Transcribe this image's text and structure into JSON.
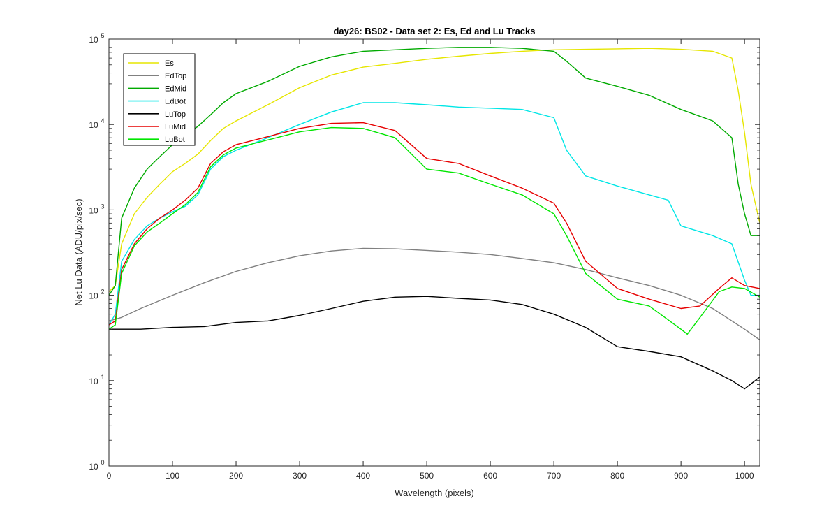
{
  "chart_data": {
    "type": "line",
    "title": "day26: BS02 - Data set 2: Es, Ed and Lu Tracks",
    "xlabel": "Wavelength (pixels)",
    "ylabel": "Net Lu Data (ADU/pix/sec)",
    "xlim": [
      0,
      1024
    ],
    "ylim": [
      1,
      100000
    ],
    "yscale": "log",
    "grid": false,
    "legend_position": "top-left",
    "x_ticks": [
      0,
      100,
      200,
      300,
      400,
      500,
      600,
      700,
      800,
      900,
      1000
    ],
    "x_tick_labels": [
      "0",
      "100",
      "200",
      "300",
      "400",
      "500",
      "600",
      "700",
      "800",
      "900",
      "1000"
    ],
    "y_ticks": [
      1,
      10,
      100,
      1000,
      10000,
      100000
    ],
    "y_tick_labels": [
      "10",
      "10",
      "10",
      "10",
      "10",
      "10"
    ],
    "y_tick_exponents": [
      "0",
      "1",
      "2",
      "3",
      "4",
      "5"
    ],
    "series": [
      {
        "name": "Es",
        "color": "#e6e600",
        "x": [
          0,
          10,
          20,
          40,
          60,
          80,
          100,
          120,
          140,
          160,
          180,
          200,
          250,
          300,
          350,
          400,
          450,
          500,
          550,
          600,
          650,
          700,
          750,
          800,
          850,
          900,
          950,
          980,
          990,
          1000,
          1010,
          1024
        ],
        "y": [
          110,
          130,
          400,
          900,
          1400,
          2000,
          2800,
          3500,
          4500,
          6500,
          9000,
          11000,
          17000,
          27000,
          38000,
          47000,
          52000,
          58000,
          63000,
          68000,
          72000,
          75000,
          76000,
          77000,
          78000,
          76000,
          72000,
          60000,
          25000,
          8000,
          2000,
          700
        ]
      },
      {
        "name": "EdTop",
        "color": "#808080",
        "x": [
          0,
          20,
          50,
          100,
          150,
          200,
          250,
          300,
          350,
          400,
          450,
          500,
          550,
          600,
          650,
          700,
          750,
          800,
          850,
          900,
          950,
          1000,
          1024
        ],
        "y": [
          50,
          55,
          70,
          100,
          140,
          190,
          240,
          290,
          330,
          355,
          350,
          335,
          320,
          300,
          270,
          240,
          200,
          160,
          130,
          100,
          70,
          40,
          30
        ]
      },
      {
        "name": "EdMid",
        "color": "#00aa00",
        "x": [
          0,
          10,
          20,
          40,
          60,
          80,
          100,
          120,
          140,
          160,
          180,
          200,
          250,
          300,
          350,
          400,
          450,
          500,
          550,
          600,
          650,
          700,
          720,
          750,
          800,
          850,
          900,
          950,
          980,
          990,
          1000,
          1010,
          1024
        ],
        "y": [
          100,
          130,
          800,
          1800,
          3000,
          4200,
          5800,
          7500,
          9500,
          13000,
          18000,
          23000,
          32000,
          48000,
          62000,
          72000,
          75000,
          78000,
          80000,
          80000,
          78000,
          72000,
          55000,
          35000,
          28000,
          22000,
          15000,
          11000,
          7000,
          2000,
          900,
          500,
          500
        ]
      },
      {
        "name": "EdBot",
        "color": "#00e6e6",
        "x": [
          0,
          10,
          20,
          40,
          60,
          80,
          100,
          120,
          140,
          160,
          180,
          200,
          250,
          300,
          350,
          400,
          450,
          500,
          550,
          600,
          650,
          700,
          720,
          750,
          800,
          850,
          880,
          900,
          950,
          980,
          1000,
          1010,
          1024
        ],
        "y": [
          45,
          60,
          250,
          450,
          650,
          800,
          950,
          1100,
          1500,
          3000,
          4200,
          5000,
          7000,
          10000,
          14000,
          18000,
          18000,
          17000,
          16000,
          15500,
          15000,
          12000,
          5000,
          2500,
          1900,
          1500,
          1300,
          650,
          500,
          400,
          150,
          100,
          100
        ]
      },
      {
        "name": "LuTop",
        "color": "#000000",
        "x": [
          0,
          50,
          100,
          150,
          200,
          250,
          300,
          350,
          400,
          450,
          500,
          550,
          600,
          650,
          700,
          750,
          800,
          850,
          900,
          950,
          980,
          1000,
          1024
        ],
        "y": [
          40,
          40,
          42,
          43,
          48,
          50,
          58,
          70,
          85,
          95,
          97,
          92,
          88,
          78,
          60,
          42,
          25,
          22,
          19,
          13,
          10,
          8,
          11
        ]
      },
      {
        "name": "LuMid",
        "color": "#e60000",
        "x": [
          0,
          10,
          20,
          40,
          60,
          80,
          100,
          120,
          140,
          160,
          180,
          200,
          250,
          300,
          350,
          400,
          450,
          500,
          550,
          600,
          650,
          700,
          720,
          750,
          800,
          850,
          900,
          930,
          960,
          980,
          1000,
          1024
        ],
        "y": [
          45,
          50,
          200,
          400,
          600,
          800,
          1000,
          1300,
          1800,
          3500,
          4800,
          5800,
          7200,
          9000,
          10300,
          10500,
          8500,
          4000,
          3500,
          2500,
          1800,
          1200,
          700,
          250,
          120,
          90,
          70,
          75,
          120,
          160,
          130,
          120
        ]
      },
      {
        "name": "LuBot",
        "color": "#00e600",
        "x": [
          0,
          10,
          20,
          40,
          60,
          80,
          100,
          120,
          140,
          160,
          180,
          200,
          250,
          300,
          350,
          400,
          450,
          500,
          550,
          600,
          650,
          700,
          720,
          750,
          800,
          850,
          900,
          910,
          930,
          960,
          980,
          1000,
          1024
        ],
        "y": [
          40,
          45,
          180,
          380,
          550,
          700,
          900,
          1150,
          1600,
          3200,
          4400,
          5300,
          6600,
          8200,
          9200,
          9000,
          7000,
          3000,
          2700,
          2000,
          1500,
          900,
          500,
          180,
          90,
          75,
          40,
          35,
          55,
          110,
          125,
          120,
          95
        ]
      }
    ]
  }
}
